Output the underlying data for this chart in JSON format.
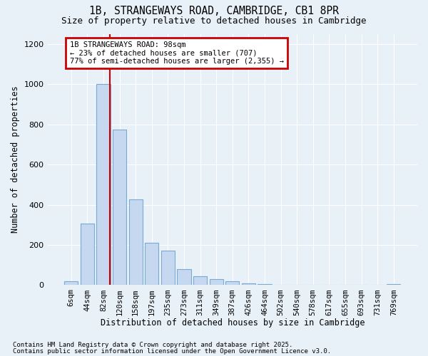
{
  "title_line1": "1B, STRANGEWAYS ROAD, CAMBRIDGE, CB1 8PR",
  "title_line2": "Size of property relative to detached houses in Cambridge",
  "xlabel": "Distribution of detached houses by size in Cambridge",
  "ylabel": "Number of detached properties",
  "categories": [
    "6sqm",
    "44sqm",
    "82sqm",
    "120sqm",
    "158sqm",
    "197sqm",
    "235sqm",
    "273sqm",
    "311sqm",
    "349sqm",
    "387sqm",
    "426sqm",
    "464sqm",
    "502sqm",
    "540sqm",
    "578sqm",
    "617sqm",
    "655sqm",
    "693sqm",
    "731sqm",
    "769sqm"
  ],
  "values": [
    20,
    305,
    1000,
    775,
    425,
    210,
    170,
    80,
    45,
    30,
    20,
    10,
    5,
    3,
    3,
    2,
    1,
    0,
    0,
    0,
    5
  ],
  "bar_color": "#c5d8f0",
  "bar_edge_color": "#7aaad4",
  "background_color": "#e8f0f8",
  "grid_color": "#ffffff",
  "vline_color": "#cc0000",
  "annotation_text": "1B STRANGEWAYS ROAD: 98sqm\n← 23% of detached houses are smaller (707)\n77% of semi-detached houses are larger (2,355) →",
  "footer_line1": "Contains HM Land Registry data © Crown copyright and database right 2025.",
  "footer_line2": "Contains public sector information licensed under the Open Government Licence v3.0.",
  "ylim": [
    0,
    1250
  ],
  "yticks": [
    0,
    200,
    400,
    600,
    800,
    1000,
    1200
  ]
}
